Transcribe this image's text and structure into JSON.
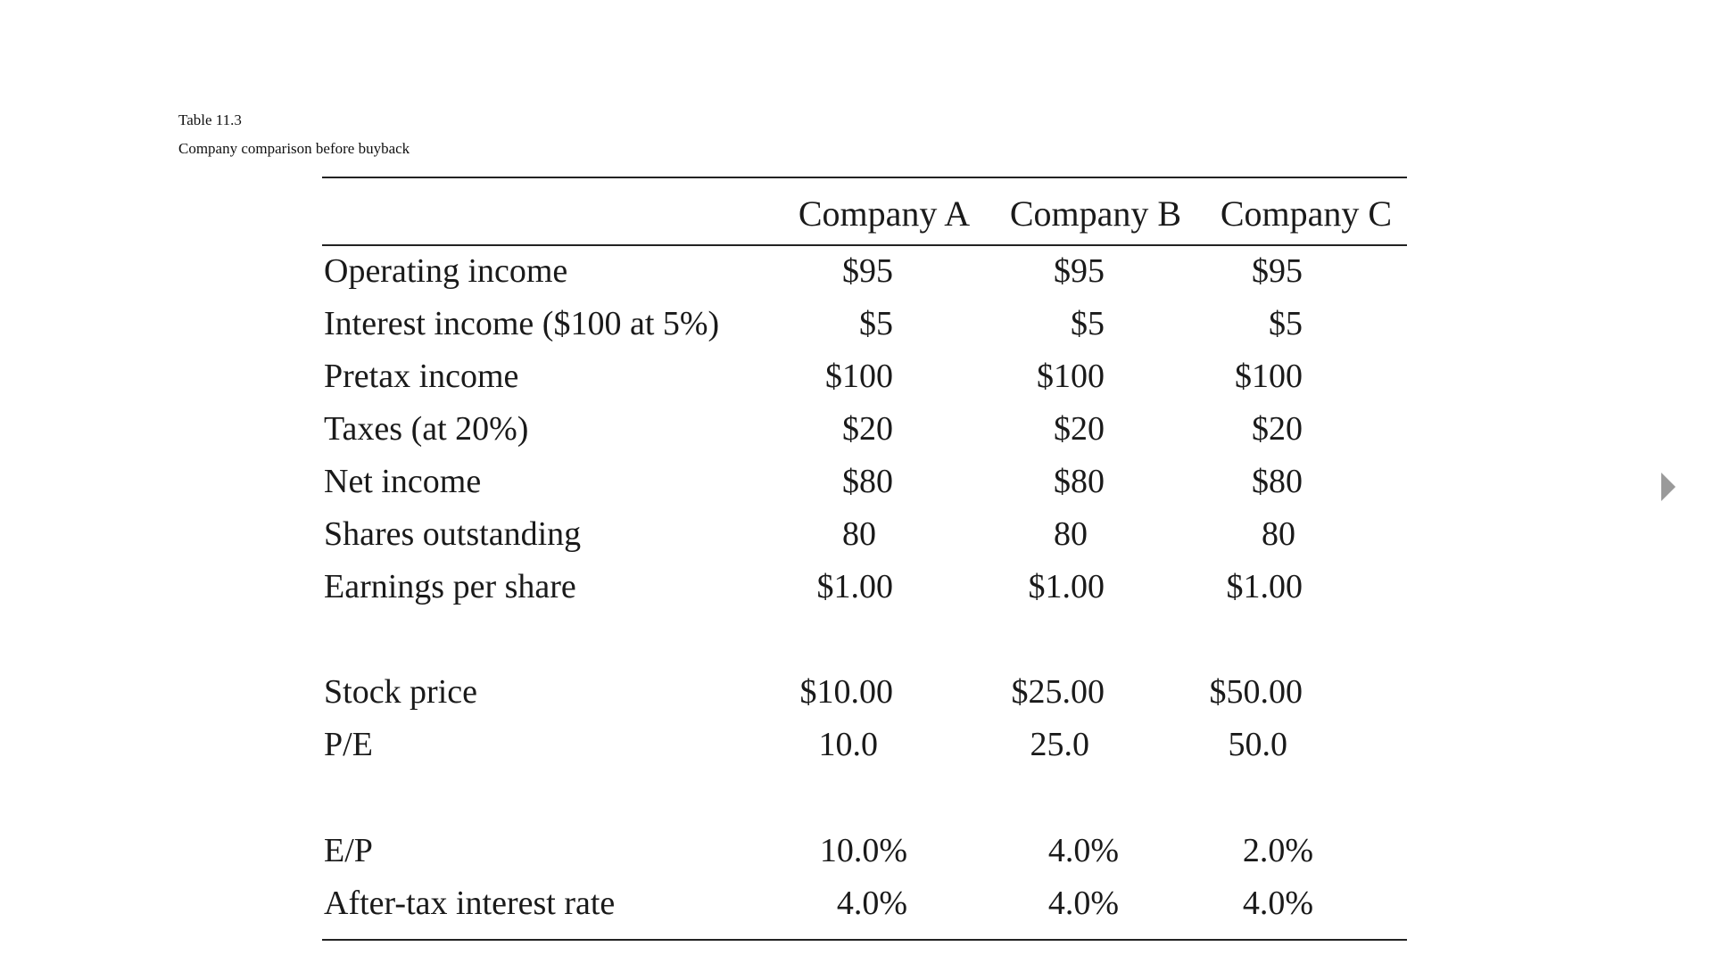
{
  "caption": {
    "label": "Table 11.3",
    "title": "Company comparison before buyback"
  },
  "table": {
    "columns": [
      "Company A",
      "Company B",
      "Company C"
    ],
    "rows": [
      {
        "label": "Operating income",
        "values": [
          "$95",
          "$95",
          "$95"
        ]
      },
      {
        "label": "Interest income ($100 at 5%)",
        "values": [
          "$5",
          "$5",
          "$5"
        ]
      },
      {
        "label": "Pretax income",
        "values": [
          "$100",
          "$100",
          "$100"
        ]
      },
      {
        "label": "Taxes (at 20%)",
        "values": [
          "$20",
          "$20",
          "$20"
        ]
      },
      {
        "label": "Net income",
        "values": [
          "$80",
          "$80",
          "$80"
        ]
      },
      {
        "label": "Shares outstanding",
        "values": [
          "80",
          "80",
          "80"
        ]
      },
      {
        "label": "Earnings per share",
        "values": [
          "$1.00",
          "$1.00",
          "$1.00"
        ]
      },
      {
        "label": "Stock price",
        "values": [
          "$10.00",
          "$25.00",
          "$50.00"
        ]
      },
      {
        "label": "P/E",
        "values": [
          "10.0",
          "25.0",
          "50.0"
        ]
      },
      {
        "label": "E/P",
        "values": [
          "10.0%",
          "4.0%",
          "2.0%"
        ]
      },
      {
        "label": "After-tax interest rate",
        "values": [
          "4.0%",
          "4.0%",
          "4.0%"
        ]
      }
    ]
  },
  "navigation": {
    "next_icon": "triangle-right"
  }
}
